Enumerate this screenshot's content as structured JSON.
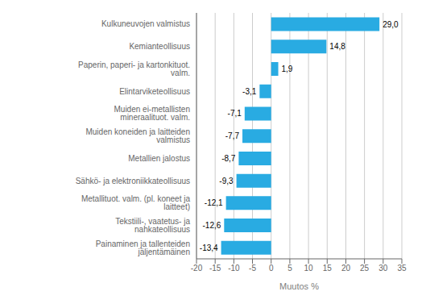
{
  "chart_data": {
    "type": "bar",
    "orientation": "horizontal",
    "categories": [
      "Painaminen ja tallenteiden jäljentämäinen",
      "Tekstiili-, vaatetus- ja nahkateollisuus",
      "Metallituot. valm. (pl. koneet ja laitteet)",
      "Sähkö- ja elektroniikkateollisuus",
      "Metallien jalostus",
      "Muiden koneiden ja laitteiden valmistus",
      "Muiden ei-metallisten mineraalituot. valm.",
      "Elintarviketeollisuus",
      "Paperin, paperi- ja kartonkituot. valm.",
      "Kemianteollisuus",
      "Kulkuneuvojen valmistus"
    ],
    "values": [
      -13.4,
      -12.6,
      -12.1,
      -9.3,
      -8.7,
      -7.7,
      -7.1,
      -3.1,
      1.9,
      14.8,
      29.0
    ],
    "value_labels": [
      "-13,4",
      "-12,6",
      "-12,1",
      "-9,3",
      "-8,7",
      "-7,7",
      "-7,1",
      "-3,1",
      "1,9",
      "14,8",
      "29,0"
    ],
    "data_labels": true,
    "color": "#29abe2",
    "xlabel": "Muutos %",
    "xlim": [
      -20,
      35
    ],
    "xticks": [
      -20,
      -15,
      -10,
      -5,
      0,
      5,
      10,
      15,
      20,
      25,
      30,
      35
    ],
    "grid": true
  }
}
